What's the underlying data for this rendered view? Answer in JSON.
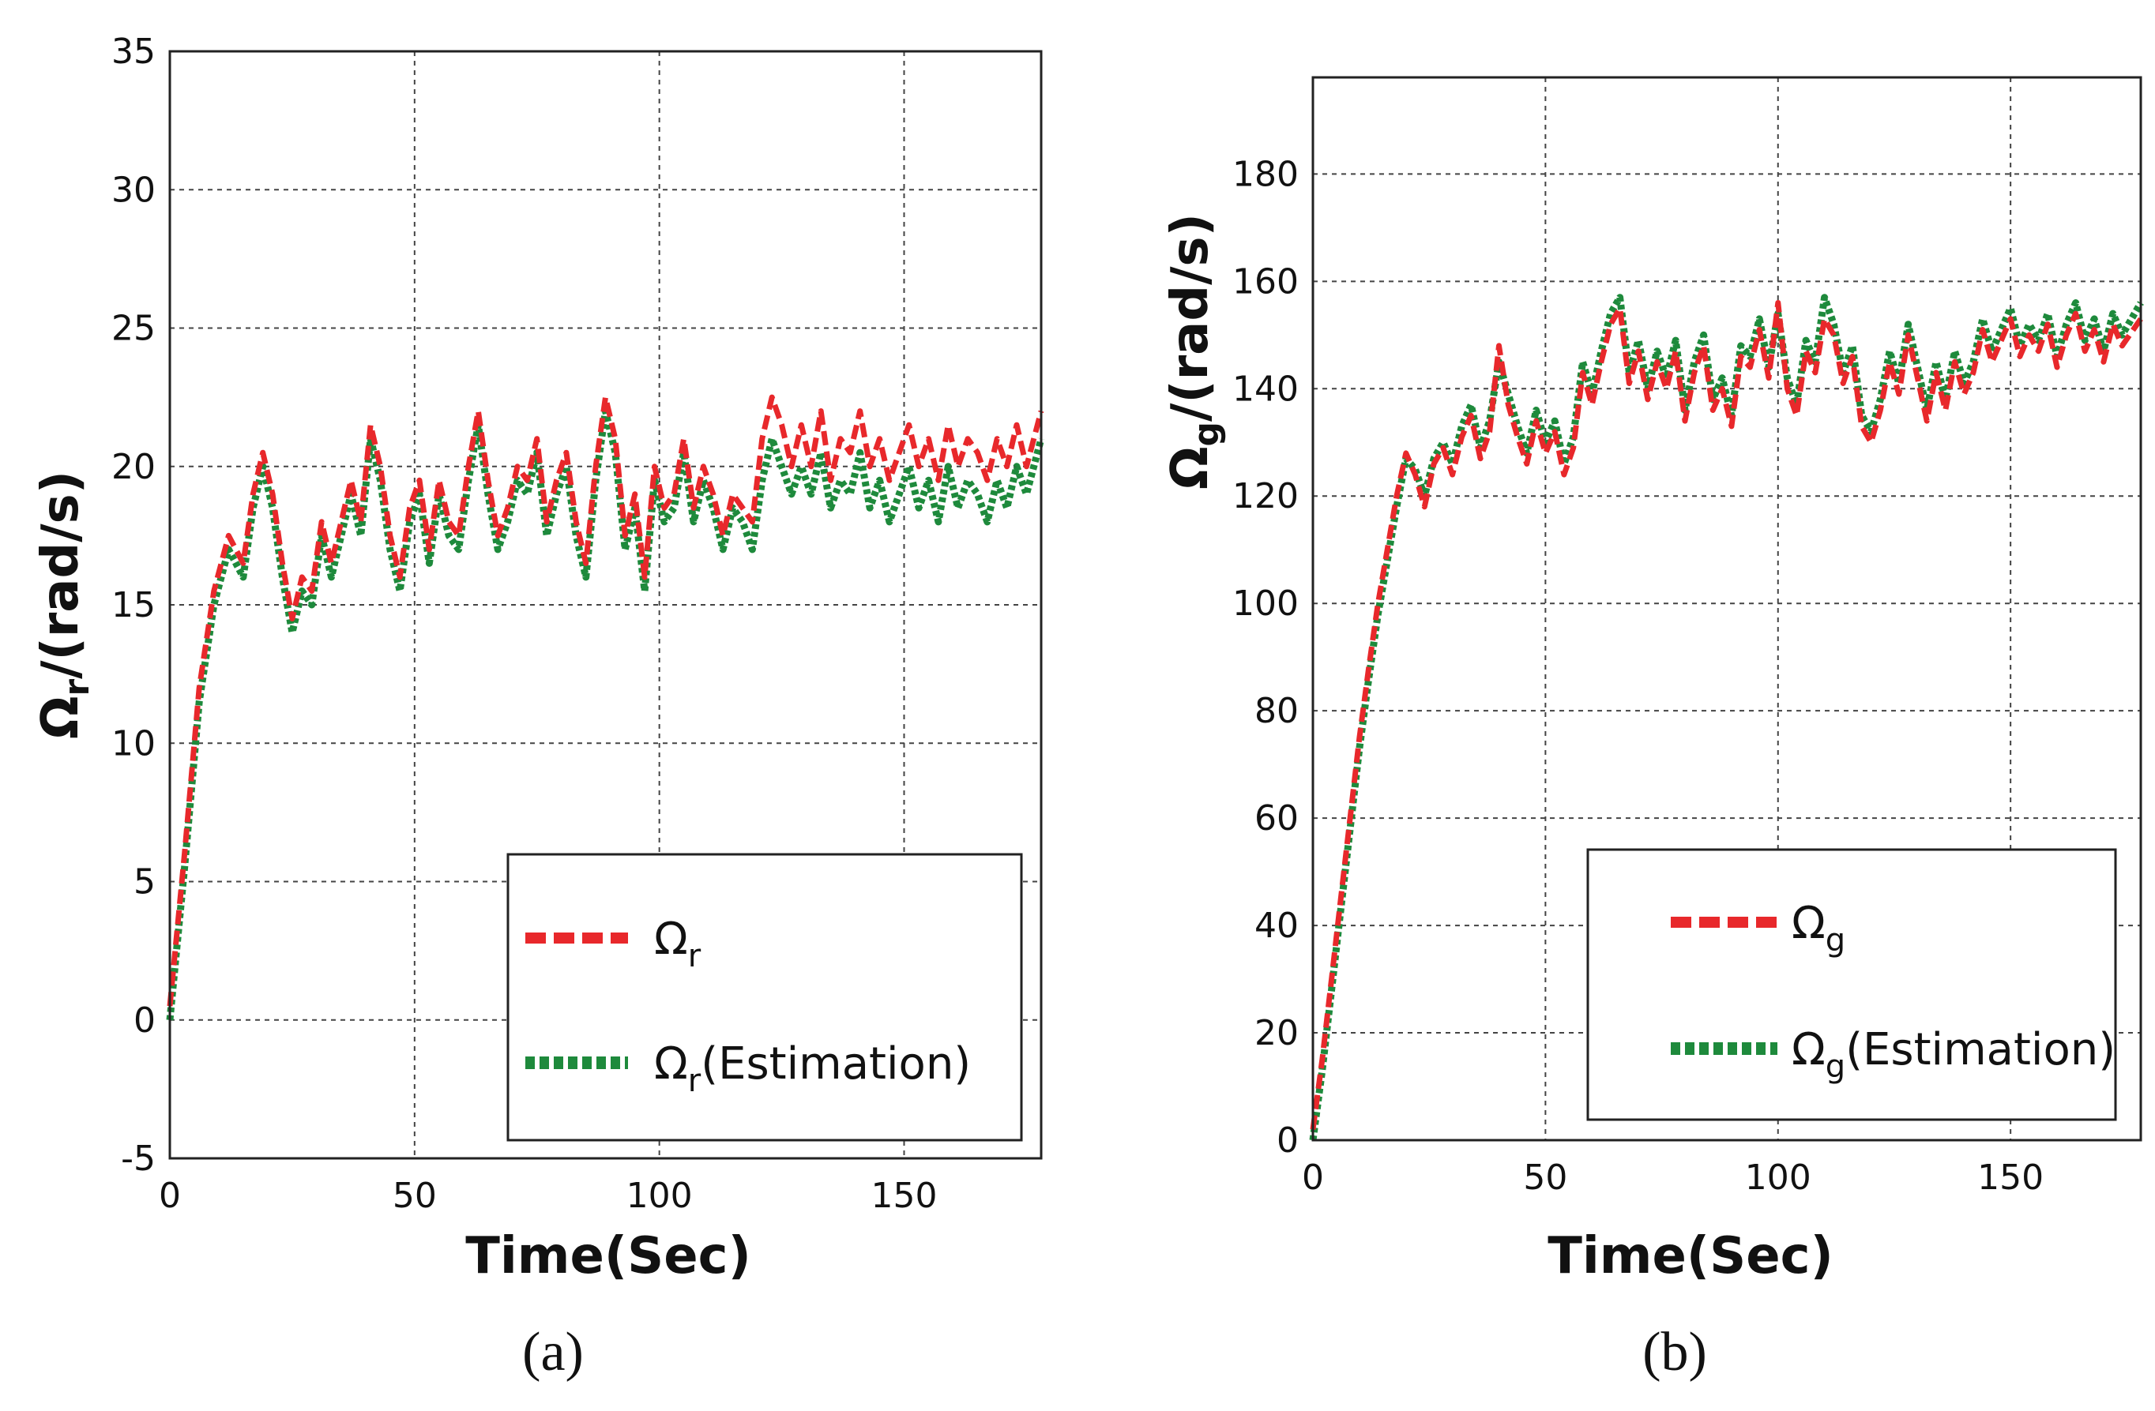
{
  "colors": {
    "measured": "#e8282b",
    "estimation": "#1e8a3c",
    "grid": "#444444",
    "axis": "#222222"
  },
  "chart_data": [
    {
      "type": "line",
      "panel_caption": "(a)",
      "xlabel": "Time(Sec)",
      "ylabel": "Ω_r/(rad/s)",
      "ylabel_main": "Ω",
      "ylabel_sub": "r",
      "ylabel_rest": "/(rad/s)",
      "xlim": [
        0,
        178
      ],
      "ylim": [
        -5,
        35
      ],
      "xticks": [
        0,
        50,
        100,
        150
      ],
      "xtick_labels": [
        "0",
        "50",
        "100",
        "150"
      ],
      "yticks": [
        -5,
        0,
        5,
        10,
        15,
        20,
        25,
        30,
        35
      ],
      "ytick_labels": [
        "-5",
        "0",
        "5",
        "10",
        "15",
        "20",
        "25",
        "30",
        "35"
      ],
      "grid": true,
      "legend_position": "bottom-right",
      "series": [
        {
          "name": "Ω_r",
          "legend_main": "Ω",
          "legend_sub": "r",
          "legend_rest": "",
          "style": "dashed",
          "x": [
            0,
            3,
            6,
            9,
            12,
            15,
            17,
            19,
            21,
            23,
            25,
            27,
            29,
            31,
            33,
            35,
            37,
            39,
            41,
            43,
            45,
            47,
            49,
            51,
            53,
            55,
            57,
            59,
            61,
            63,
            65,
            67,
            69,
            71,
            73,
            75,
            77,
            79,
            81,
            83,
            85,
            87,
            89,
            91,
            93,
            95,
            97,
            99,
            101,
            103,
            105,
            107,
            109,
            111,
            113,
            115,
            117,
            119,
            121,
            123,
            125,
            127,
            129,
            131,
            133,
            135,
            137,
            139,
            141,
            143,
            145,
            147,
            149,
            151,
            153,
            155,
            157,
            159,
            161,
            163,
            165,
            167,
            169,
            171,
            173,
            175,
            178
          ],
          "y": [
            0.5,
            6,
            12,
            15.5,
            17.5,
            16.5,
            19,
            20.5,
            19,
            16.5,
            14.5,
            16,
            15.5,
            18,
            16.5,
            18,
            19.5,
            18,
            21.5,
            20,
            17.5,
            16,
            18.5,
            19.5,
            17,
            19.5,
            18,
            17.5,
            20,
            22,
            19.5,
            17.5,
            18.5,
            20,
            19.5,
            21,
            18,
            19.5,
            20.5,
            18,
            16.5,
            20,
            22.5,
            21,
            17.5,
            19,
            16,
            20,
            18.5,
            19,
            21,
            18.5,
            20,
            19,
            17.5,
            19,
            18.5,
            18,
            21,
            22.5,
            21.5,
            20,
            21.5,
            20,
            22,
            19.5,
            21,
            20.5,
            22,
            20,
            21,
            19.5,
            20.5,
            21.5,
            20,
            21,
            19.5,
            21.5,
            20,
            21,
            20.5,
            19.5,
            21,
            20,
            21.5,
            20,
            22
          ]
        },
        {
          "name": "Ω_r(Estimation)",
          "legend_main": "Ω",
          "legend_sub": "r",
          "legend_rest": "(Estimation)",
          "style": "dotted",
          "x": [
            0,
            3,
            6,
            9,
            12,
            15,
            17,
            19,
            21,
            23,
            25,
            27,
            29,
            31,
            33,
            35,
            37,
            39,
            41,
            43,
            45,
            47,
            49,
            51,
            53,
            55,
            57,
            59,
            61,
            63,
            65,
            67,
            69,
            71,
            73,
            75,
            77,
            79,
            81,
            83,
            85,
            87,
            89,
            91,
            93,
            95,
            97,
            99,
            101,
            103,
            105,
            107,
            109,
            111,
            113,
            115,
            117,
            119,
            121,
            123,
            125,
            127,
            129,
            131,
            133,
            135,
            137,
            139,
            141,
            143,
            145,
            147,
            149,
            151,
            153,
            155,
            157,
            159,
            161,
            163,
            165,
            167,
            169,
            171,
            173,
            175,
            178
          ],
          "y": [
            0,
            5.5,
            11.5,
            15,
            17,
            16,
            18.5,
            20,
            18.5,
            16,
            14,
            15.5,
            15,
            17.5,
            16,
            17.5,
            19,
            17.5,
            21,
            19.5,
            17,
            15.5,
            18,
            19,
            16.5,
            19,
            17.5,
            17,
            19.5,
            21.5,
            19,
            17,
            18,
            19.5,
            19,
            20.5,
            17.5,
            19,
            20,
            17.5,
            16,
            19.5,
            22,
            20.5,
            17,
            18.5,
            15.5,
            19.5,
            18,
            18.5,
            20.5,
            18,
            19.5,
            18.5,
            17,
            18.5,
            18,
            17,
            19.5,
            21,
            20,
            19,
            20,
            19,
            20.5,
            18.5,
            19.5,
            19,
            20.5,
            18.5,
            19.5,
            18,
            19,
            20,
            18.5,
            19.5,
            18,
            20,
            18.5,
            19.5,
            19,
            18,
            19.5,
            18.5,
            20,
            19,
            21
          ]
        }
      ]
    },
    {
      "type": "line",
      "panel_caption": "(b)",
      "xlabel": "Time(Sec)",
      "ylabel": "Ω_g/(rad/s)",
      "ylabel_main": "Ω",
      "ylabel_sub": "g",
      "ylabel_rest": "/(rad/s)",
      "xlim": [
        0,
        178
      ],
      "ylim": [
        0,
        198
      ],
      "xticks": [
        0,
        50,
        100,
        150
      ],
      "xtick_labels": [
        "0",
        "50",
        "100",
        "150"
      ],
      "yticks": [
        0,
        20,
        40,
        60,
        80,
        100,
        120,
        140,
        160,
        180
      ],
      "ytick_labels": [
        "0",
        "20",
        "40",
        "60",
        "80",
        "100",
        "120",
        "140",
        "160",
        "180"
      ],
      "grid": true,
      "legend_position": "bottom-right",
      "series": [
        {
          "name": "Ω_g",
          "legend_main": "Ω",
          "legend_sub": "g",
          "legend_rest": "",
          "style": "dashed",
          "x": [
            0,
            2,
            4,
            6,
            8,
            10,
            12,
            14,
            16,
            18,
            20,
            22,
            24,
            26,
            28,
            30,
            32,
            34,
            36,
            38,
            40,
            42,
            44,
            46,
            48,
            50,
            52,
            54,
            56,
            58,
            60,
            62,
            64,
            66,
            68,
            70,
            72,
            74,
            76,
            78,
            80,
            82,
            84,
            86,
            88,
            90,
            92,
            94,
            96,
            98,
            100,
            102,
            104,
            106,
            108,
            110,
            112,
            114,
            116,
            118,
            120,
            122,
            124,
            126,
            128,
            130,
            132,
            134,
            136,
            138,
            140,
            142,
            144,
            146,
            148,
            150,
            152,
            154,
            156,
            158,
            160,
            162,
            164,
            166,
            168,
            170,
            172,
            174,
            178
          ],
          "y": [
            2,
            15,
            30,
            45,
            60,
            75,
            88,
            100,
            110,
            120,
            128,
            124,
            118,
            126,
            129,
            124,
            131,
            135,
            127,
            132,
            148,
            137,
            131,
            126,
            134,
            128,
            132,
            124,
            129,
            143,
            137,
            145,
            152,
            155,
            141,
            147,
            138,
            145,
            140,
            147,
            134,
            143,
            148,
            136,
            140,
            133,
            146,
            144,
            151,
            142,
            156,
            140,
            135,
            147,
            143,
            153,
            150,
            141,
            146,
            133,
            130,
            136,
            145,
            139,
            150,
            142,
            134,
            143,
            136,
            145,
            139,
            143,
            151,
            145,
            149,
            153,
            146,
            150,
            147,
            152,
            144,
            150,
            154,
            147,
            151,
            145,
            152,
            148,
            153
          ]
        },
        {
          "name": "Ω_g(Estimation)",
          "legend_main": "Ω",
          "legend_sub": "g",
          "legend_rest": "(Estimation)",
          "style": "dotted",
          "x": [
            0,
            2,
            4,
            6,
            8,
            10,
            12,
            14,
            16,
            18,
            20,
            22,
            24,
            26,
            28,
            30,
            32,
            34,
            36,
            38,
            40,
            42,
            44,
            46,
            48,
            50,
            52,
            54,
            56,
            58,
            60,
            62,
            64,
            66,
            68,
            70,
            72,
            74,
            76,
            78,
            80,
            82,
            84,
            86,
            88,
            90,
            92,
            94,
            96,
            98,
            100,
            102,
            104,
            106,
            108,
            110,
            112,
            114,
            116,
            118,
            120,
            122,
            124,
            126,
            128,
            130,
            132,
            134,
            136,
            138,
            140,
            142,
            144,
            146,
            148,
            150,
            152,
            154,
            156,
            158,
            160,
            162,
            164,
            166,
            168,
            170,
            172,
            174,
            178
          ],
          "y": [
            0,
            13,
            28,
            43,
            58,
            73,
            86,
            98,
            108,
            118,
            127,
            125,
            120,
            127,
            130,
            126,
            133,
            137,
            129,
            134,
            145,
            139,
            133,
            128,
            136,
            130,
            134,
            126,
            131,
            145,
            139,
            147,
            154,
            157,
            143,
            149,
            140,
            147,
            142,
            149,
            136,
            145,
            150,
            138,
            142,
            135,
            148,
            146,
            153,
            144,
            154,
            142,
            137,
            149,
            145,
            157,
            152,
            143,
            148,
            135,
            132,
            138,
            147,
            141,
            152,
            144,
            136,
            145,
            138,
            147,
            141,
            145,
            153,
            147,
            151,
            155,
            148,
            152,
            149,
            154,
            146,
            152,
            156,
            149,
            153,
            147,
            154,
            150,
            156
          ]
        }
      ]
    }
  ]
}
